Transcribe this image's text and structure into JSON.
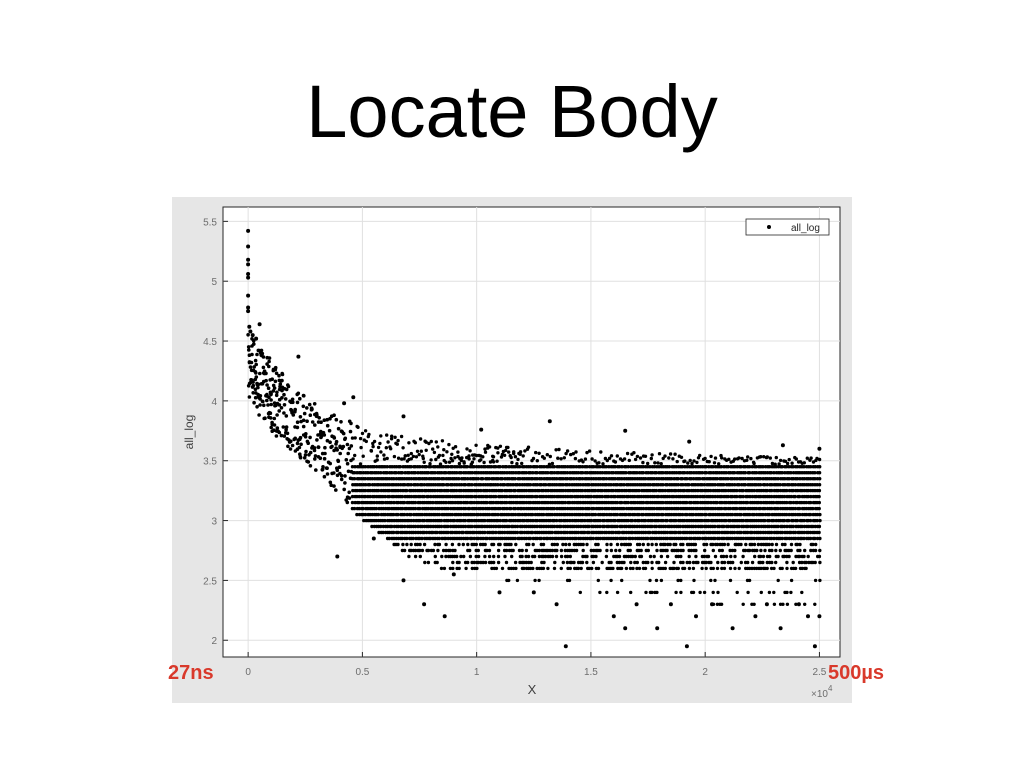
{
  "slide": {
    "title": "Locate Body",
    "left_marker": "27ns",
    "right_marker": "500µs",
    "marker_color": "#d9392b"
  },
  "chart_data": {
    "type": "scatter",
    "title": "",
    "xlabel": "X",
    "ylabel": "all_log",
    "x_exponent_label": "×10",
    "x_exponent_power": "4",
    "xlim": [
      -1100,
      25900
    ],
    "ylim": [
      1.86,
      5.62
    ],
    "x_ticks": [
      0,
      5000,
      10000,
      15000,
      20000,
      25000
    ],
    "x_tick_labels": [
      "0",
      "0.5",
      "1",
      "1.5",
      "2",
      "2.5"
    ],
    "y_ticks": [
      2,
      2.5,
      3,
      3.5,
      4,
      4.5,
      5,
      5.5
    ],
    "y_tick_labels": [
      "2",
      "2.5",
      "3",
      "3.5",
      "4",
      "4.5",
      "5",
      "5.5"
    ],
    "grid": true,
    "legend_position": "top-right",
    "marker_color": "#000000",
    "series": [
      {
        "name": "all_log",
        "band_levels": [
          2.2,
          2.3,
          2.4,
          2.5,
          2.6,
          2.65,
          2.7,
          2.75,
          2.8,
          2.85,
          2.9,
          2.95,
          3.0,
          3.05,
          3.1,
          3.15,
          3.2,
          3.25,
          3.3,
          3.35,
          3.4,
          3.45
        ],
        "upper_trend": [
          [
            0,
            4.6
          ],
          [
            1000,
            4.32
          ],
          [
            2000,
            4.12
          ],
          [
            3000,
            3.97
          ],
          [
            4000,
            3.86
          ],
          [
            5000,
            3.78
          ],
          [
            7000,
            3.7
          ],
          [
            10000,
            3.64
          ],
          [
            15000,
            3.58
          ],
          [
            20000,
            3.55
          ],
          [
            25000,
            3.52
          ]
        ],
        "lower_trend": [
          [
            0,
            4.0
          ],
          [
            1000,
            3.75
          ],
          [
            2000,
            3.55
          ],
          [
            3000,
            3.4
          ],
          [
            4000,
            3.2
          ],
          [
            5000,
            3.0
          ],
          [
            6000,
            2.85
          ],
          [
            7000,
            2.7
          ],
          [
            9000,
            2.55
          ],
          [
            12000,
            2.45
          ],
          [
            16000,
            2.35
          ],
          [
            20000,
            2.3
          ],
          [
            25000,
            2.25
          ]
        ],
        "points": [
          [
            0,
            5.42
          ],
          [
            0,
            5.29
          ],
          [
            0,
            5.18
          ],
          [
            0,
            5.14
          ],
          [
            0,
            5.06
          ],
          [
            0,
            5.03
          ],
          [
            0,
            4.88
          ],
          [
            0,
            4.78
          ],
          [
            0,
            4.75
          ],
          [
            50,
            4.62
          ],
          [
            100,
            4.58
          ],
          [
            200,
            4.55
          ],
          [
            350,
            4.52
          ],
          [
            500,
            4.64
          ],
          [
            2200,
            4.37
          ],
          [
            4600,
            4.03
          ],
          [
            4200,
            3.98
          ],
          [
            13200,
            3.83
          ],
          [
            6800,
            3.87
          ],
          [
            10200,
            3.76
          ],
          [
            16500,
            3.75
          ],
          [
            19300,
            3.66
          ],
          [
            23400,
            3.63
          ],
          [
            25000,
            3.6
          ],
          [
            3900,
            2.7
          ],
          [
            5500,
            2.85
          ],
          [
            6800,
            2.5
          ],
          [
            7700,
            2.3
          ],
          [
            8600,
            2.2
          ],
          [
            9000,
            2.55
          ],
          [
            11000,
            2.4
          ],
          [
            12500,
            2.4
          ],
          [
            13500,
            2.3
          ],
          [
            13900,
            1.95
          ],
          [
            16000,
            2.2
          ],
          [
            16500,
            2.1
          ],
          [
            17000,
            2.3
          ],
          [
            17900,
            2.1
          ],
          [
            18500,
            2.3
          ],
          [
            19200,
            1.95
          ],
          [
            19600,
            2.2
          ],
          [
            20300,
            2.3
          ],
          [
            21200,
            2.1
          ],
          [
            22200,
            2.2
          ],
          [
            22700,
            2.3
          ],
          [
            23300,
            2.1
          ],
          [
            24100,
            2.3
          ],
          [
            24500,
            2.2
          ],
          [
            24800,
            1.95
          ],
          [
            25000,
            2.2
          ]
        ]
      }
    ]
  }
}
